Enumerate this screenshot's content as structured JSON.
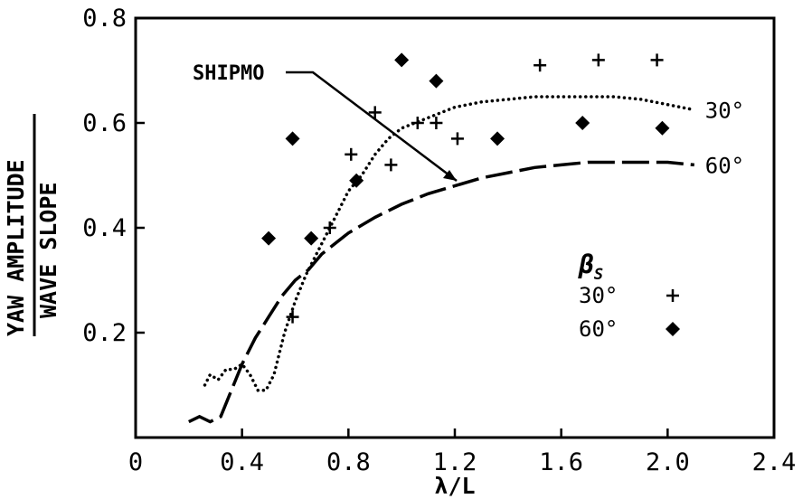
{
  "chart_data": {
    "type": "scatter",
    "xlabel": "λ/L",
    "ylabel_top": "YAW AMPLITUDE",
    "ylabel_bottom": "WAVE SLOPE",
    "xlim": [
      0,
      2.4
    ],
    "ylim": [
      0,
      0.8
    ],
    "x_ticks": [
      "0",
      "0.4",
      "0.8",
      "1.2",
      "1.6",
      "2.0",
      "2.4"
    ],
    "y_ticks": [
      "0.2",
      "0.4",
      "0.6",
      "0.8"
    ],
    "grid": false,
    "annotation": "SHIPMO",
    "legend": {
      "title": "βs",
      "title_main": "β",
      "title_sub": "S",
      "position": "right-middle",
      "entries": [
        {
          "label": "30°",
          "marker": "plus"
        },
        {
          "label": "60°",
          "marker": "diamond"
        }
      ]
    },
    "curves": [
      {
        "label": "30°",
        "style": "dotted",
        "points": [
          [
            0.26,
            0.1
          ],
          [
            0.28,
            0.12
          ],
          [
            0.31,
            0.11
          ],
          [
            0.34,
            0.13
          ],
          [
            0.37,
            0.13
          ],
          [
            0.4,
            0.14
          ],
          [
            0.43,
            0.12
          ],
          [
            0.46,
            0.09
          ],
          [
            0.49,
            0.09
          ],
          [
            0.52,
            0.12
          ],
          [
            0.56,
            0.2
          ],
          [
            0.6,
            0.26
          ],
          [
            0.64,
            0.31
          ],
          [
            0.68,
            0.35
          ],
          [
            0.72,
            0.39
          ],
          [
            0.76,
            0.43
          ],
          [
            0.8,
            0.47
          ],
          [
            0.85,
            0.5
          ],
          [
            0.9,
            0.54
          ],
          [
            0.95,
            0.57
          ],
          [
            1.0,
            0.59
          ],
          [
            1.1,
            0.61
          ],
          [
            1.2,
            0.63
          ],
          [
            1.3,
            0.64
          ],
          [
            1.4,
            0.645
          ],
          [
            1.5,
            0.65
          ],
          [
            1.6,
            0.65
          ],
          [
            1.7,
            0.65
          ],
          [
            1.8,
            0.65
          ],
          [
            1.9,
            0.645
          ],
          [
            2.0,
            0.635
          ],
          [
            2.1,
            0.625
          ]
        ]
      },
      {
        "label": "60°",
        "style": "dashed",
        "points": [
          [
            0.2,
            0.03
          ],
          [
            0.24,
            0.04
          ],
          [
            0.28,
            0.03
          ],
          [
            0.32,
            0.04
          ],
          [
            0.36,
            0.09
          ],
          [
            0.4,
            0.14
          ],
          [
            0.45,
            0.19
          ],
          [
            0.5,
            0.23
          ],
          [
            0.55,
            0.27
          ],
          [
            0.6,
            0.3
          ],
          [
            0.65,
            0.32
          ],
          [
            0.7,
            0.35
          ],
          [
            0.75,
            0.37
          ],
          [
            0.8,
            0.39
          ],
          [
            0.9,
            0.42
          ],
          [
            1.0,
            0.445
          ],
          [
            1.1,
            0.465
          ],
          [
            1.2,
            0.48
          ],
          [
            1.3,
            0.495
          ],
          [
            1.4,
            0.505
          ],
          [
            1.5,
            0.515
          ],
          [
            1.6,
            0.52
          ],
          [
            1.7,
            0.525
          ],
          [
            1.8,
            0.525
          ],
          [
            1.9,
            0.525
          ],
          [
            2.0,
            0.525
          ],
          [
            2.1,
            0.52
          ]
        ]
      }
    ],
    "series": [
      {
        "name": "30°",
        "marker": "plus",
        "x": [
          0.59,
          0.73,
          0.81,
          0.9,
          0.96,
          1.06,
          1.13,
          1.21,
          1.52,
          1.74,
          1.96
        ],
        "y": [
          0.23,
          0.4,
          0.54,
          0.62,
          0.52,
          0.6,
          0.6,
          0.57,
          0.71,
          0.72,
          0.72
        ]
      },
      {
        "name": "60°",
        "marker": "diamond",
        "x": [
          0.5,
          0.59,
          0.66,
          0.83,
          1.0,
          1.13,
          1.36,
          1.68,
          1.98
        ],
        "y": [
          0.38,
          0.57,
          0.38,
          0.49,
          0.72,
          0.68,
          0.57,
          0.6,
          0.59
        ]
      }
    ]
  }
}
